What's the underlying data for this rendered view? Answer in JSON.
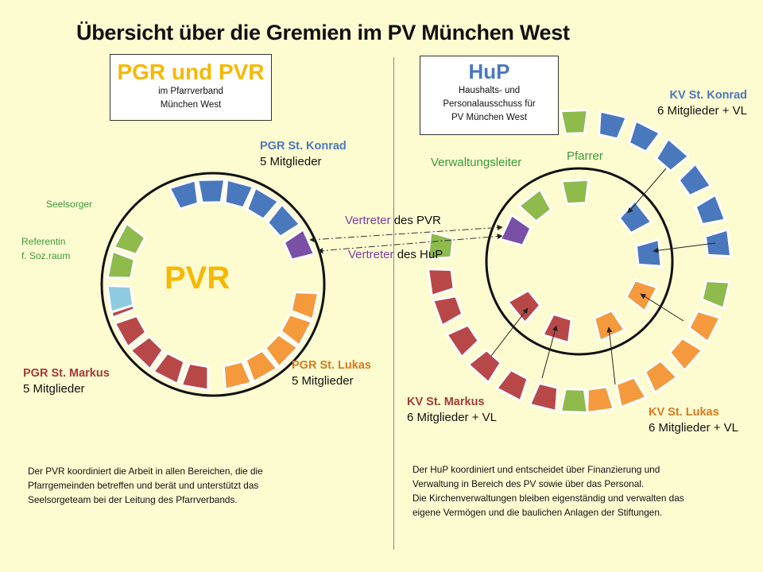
{
  "title": "Übersicht über die Gremien im PV München West",
  "pgr_box": {
    "heading": "PGR und PVR",
    "line1": "im Pfarrverband",
    "line2": "München West"
  },
  "hup_box": {
    "heading": "HuP",
    "line1": "Haushalts- und",
    "line2": "Personalausschuss für",
    "line3": "PV München West"
  },
  "pvr_center": "PVR",
  "labels": {
    "pgr_konrad": {
      "name": "PGR St. Konrad",
      "members": "5 Mitglieder"
    },
    "pgr_lukas": {
      "name": "PGR St. Lukas",
      "members": "5 Mitglieder"
    },
    "pgr_markus": {
      "name": "PGR St. Markus",
      "members": "5 Mitglieder"
    },
    "seelsorger": "Seelsorger",
    "referentin_1": "Referentin",
    "referentin_2": "f. Soz.raum",
    "kv_konrad": {
      "name": "KV St. Konrad",
      "members": "6 Mitglieder + VL"
    },
    "kv_lukas": {
      "name": "KV St. Lukas",
      "members": "6 Mitglieder + VL"
    },
    "kv_markus": {
      "name": "KV St. Markus",
      "members": "6 Mitglieder + VL"
    },
    "verwaltungsleiter": "Verwaltungsleiter",
    "pfarrer": "Pfarrer",
    "vertreter_pvr": {
      "a": "Vertreter",
      "b": " des PVR"
    },
    "vertreter_hup": {
      "a": "Vertreter",
      "b": " des HuP"
    }
  },
  "text_left": {
    "line1": "Der PVR koordiniert die Arbeit in allen Bereichen, die die",
    "line2": "Pfarrgemeinden betreffen und berät und unterstützt das",
    "line3": "Seelsorgeteam bei der Leitung des Pfarrverbands."
  },
  "text_right": {
    "line1": "Der HuP koordiniert und entscheidet über Finanzierung und",
    "line2": "Verwaltung in Bereich des PV sowie  über das Personal.",
    "line3": "Die Kirchenverwaltungen bleiben eigenständig und verwalten das",
    "line4": "eigene Vermögen und die baulichen Anlagen der Stiftungen."
  },
  "colors": {
    "background": "#fdfbd0",
    "blue": "#4a78bd",
    "red": "#b84848",
    "orange": "#f49a3c",
    "green": "#8fba4c",
    "lightblue": "#8fcbe0",
    "purple": "#7a4fa6",
    "yellow": "#f6b800"
  }
}
